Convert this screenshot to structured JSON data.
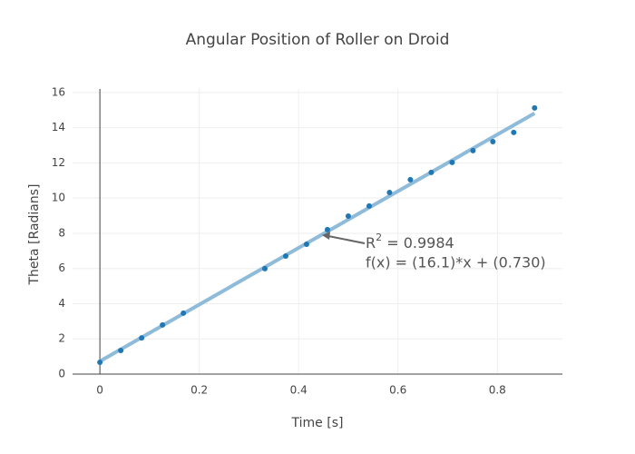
{
  "chart_data": {
    "type": "scatter",
    "title": "Angular Position of Roller on Droid",
    "xlabel": "Time [s]",
    "ylabel": "Theta [Radians]",
    "xlim": [
      -0.055,
      0.931
    ],
    "ylim": [
      0,
      16.2
    ],
    "xticks": [
      0,
      0.2,
      0.4,
      0.6,
      0.8
    ],
    "yticks": [
      0,
      2,
      4,
      6,
      8,
      10,
      12,
      14,
      16
    ],
    "grid": true,
    "series": [
      {
        "name": "data",
        "mode": "markers",
        "color": "#1f77b4",
        "x": [
          0,
          0.042,
          0.084,
          0.126,
          0.168,
          0.332,
          0.374,
          0.416,
          0.458,
          0.5,
          0.542,
          0.583,
          0.625,
          0.667,
          0.709,
          0.751,
          0.791,
          0.833,
          0.875
        ],
        "values": [
          0.67,
          1.34,
          2.06,
          2.79,
          3.46,
          5.99,
          6.71,
          7.38,
          8.21,
          8.98,
          9.55,
          10.32,
          11.05,
          11.46,
          12.03,
          12.7,
          13.21,
          13.73,
          15.12
        ]
      },
      {
        "name": "fit",
        "mode": "lines",
        "color": "#8fbbda",
        "x": [
          0,
          0.875
        ],
        "values": [
          0.73,
          14.82
        ]
      }
    ],
    "annotation": {
      "r": "R",
      "sup": "2",
      "r2": " = 0.9984",
      "equation": "f(x) = (16.1)*x + (0.730)"
    }
  }
}
